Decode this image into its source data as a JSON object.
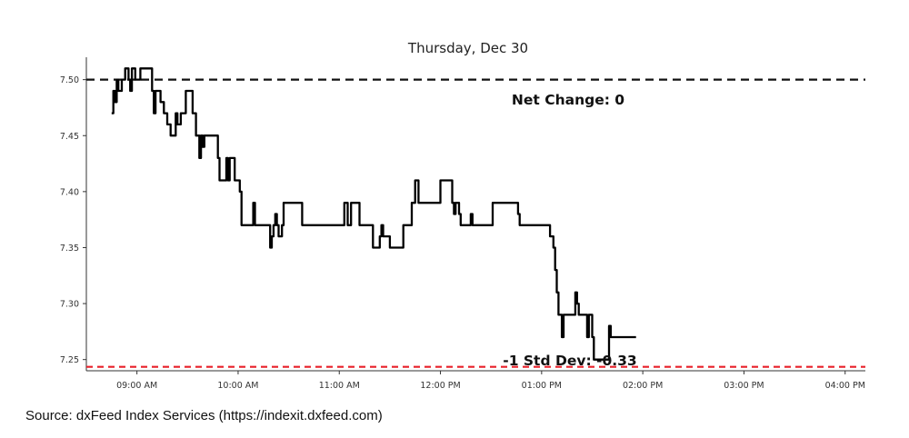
{
  "chart_data": {
    "type": "line",
    "title": "Thursday, Dec 30",
    "xlabel": "",
    "ylabel": "",
    "x_tick_labels": [
      "09:00 AM",
      "10:00 AM",
      "11:00 AM",
      "12:00 PM",
      "01:00 PM",
      "02:00 PM",
      "03:00 PM",
      "04:00 PM"
    ],
    "x_tick_minutes": [
      540,
      600,
      660,
      720,
      780,
      840,
      900,
      960
    ],
    "xlim_minutes": [
      510,
      972
    ],
    "y_tick_labels": [
      "7.25",
      "7.30",
      "7.35",
      "7.40",
      "7.45",
      "7.50"
    ],
    "y_ticks": [
      7.25,
      7.3,
      7.35,
      7.4,
      7.45,
      7.5
    ],
    "ylim": [
      7.24,
      7.52
    ],
    "grid": false,
    "series": [
      {
        "points": [
          [
            525,
            7.47
          ],
          [
            526,
            7.49
          ],
          [
            527,
            7.48
          ],
          [
            528,
            7.5
          ],
          [
            529,
            7.49
          ],
          [
            531,
            7.5
          ],
          [
            533,
            7.51
          ],
          [
            535,
            7.5
          ],
          [
            536,
            7.49
          ],
          [
            537,
            7.51
          ],
          [
            539,
            7.5
          ],
          [
            542,
            7.51
          ],
          [
            545,
            7.51
          ],
          [
            548,
            7.51
          ],
          [
            549,
            7.49
          ],
          [
            550,
            7.47
          ],
          [
            551,
            7.49
          ],
          [
            554,
            7.48
          ],
          [
            556,
            7.47
          ],
          [
            558,
            7.46
          ],
          [
            560,
            7.45
          ],
          [
            562,
            7.45
          ],
          [
            563,
            7.47
          ],
          [
            564,
            7.46
          ],
          [
            566,
            7.47
          ],
          [
            568,
            7.47
          ],
          [
            569,
            7.49
          ],
          [
            572,
            7.49
          ],
          [
            573,
            7.47
          ],
          [
            575,
            7.45
          ],
          [
            576,
            7.45
          ],
          [
            577,
            7.43
          ],
          [
            578,
            7.45
          ],
          [
            579,
            7.44
          ],
          [
            580,
            7.45
          ],
          [
            585,
            7.45
          ],
          [
            587,
            7.45
          ],
          [
            588,
            7.43
          ],
          [
            589,
            7.41
          ],
          [
            592,
            7.41
          ],
          [
            593,
            7.43
          ],
          [
            594,
            7.41
          ],
          [
            595,
            7.43
          ],
          [
            596,
            7.43
          ],
          [
            597,
            7.43
          ],
          [
            598,
            7.41
          ],
          [
            600,
            7.41
          ],
          [
            601,
            7.4
          ],
          [
            602,
            7.37
          ],
          [
            608,
            7.37
          ],
          [
            609,
            7.39
          ],
          [
            610,
            7.37
          ],
          [
            618,
            7.37
          ],
          [
            619,
            7.35
          ],
          [
            620,
            7.36
          ],
          [
            621,
            7.37
          ],
          [
            622,
            7.38
          ],
          [
            623,
            7.37
          ],
          [
            624,
            7.36
          ],
          [
            626,
            7.37
          ],
          [
            627,
            7.39
          ],
          [
            637,
            7.39
          ],
          [
            638,
            7.37
          ],
          [
            662,
            7.37
          ],
          [
            663,
            7.39
          ],
          [
            665,
            7.37
          ],
          [
            667,
            7.39
          ],
          [
            671,
            7.39
          ],
          [
            672,
            7.37
          ],
          [
            679,
            7.37
          ],
          [
            680,
            7.35
          ],
          [
            683,
            7.35
          ],
          [
            684,
            7.36
          ],
          [
            685,
            7.37
          ],
          [
            686,
            7.36
          ],
          [
            689,
            7.36
          ],
          [
            690,
            7.35
          ],
          [
            697,
            7.35
          ],
          [
            698,
            7.37
          ],
          [
            702,
            7.37
          ],
          [
            703,
            7.39
          ],
          [
            705,
            7.41
          ],
          [
            706,
            7.41
          ],
          [
            707,
            7.39
          ],
          [
            719,
            7.39
          ],
          [
            720,
            7.41
          ],
          [
            726,
            7.41
          ],
          [
            727,
            7.39
          ],
          [
            728,
            7.38
          ],
          [
            729,
            7.39
          ],
          [
            730,
            7.39
          ],
          [
            731,
            7.38
          ],
          [
            732,
            7.37
          ],
          [
            737,
            7.37
          ],
          [
            738,
            7.38
          ],
          [
            739,
            7.37
          ],
          [
            750,
            7.37
          ],
          [
            751,
            7.39
          ],
          [
            765,
            7.39
          ],
          [
            766,
            7.38
          ],
          [
            767,
            7.37
          ],
          [
            784,
            7.37
          ],
          [
            785,
            7.36
          ],
          [
            786,
            7.36
          ],
          [
            787,
            7.35
          ],
          [
            788,
            7.33
          ],
          [
            789,
            7.31
          ],
          [
            790,
            7.29
          ],
          [
            792,
            7.27
          ],
          [
            793,
            7.29
          ],
          [
            799,
            7.29
          ],
          [
            800,
            7.31
          ],
          [
            801,
            7.3
          ],
          [
            802,
            7.29
          ],
          [
            806,
            7.29
          ],
          [
            807,
            7.27
          ],
          [
            808,
            7.29
          ],
          [
            809,
            7.29
          ],
          [
            810,
            7.27
          ],
          [
            811,
            7.25
          ],
          [
            819,
            7.25
          ],
          [
            820,
            7.28
          ],
          [
            821,
            7.27
          ],
          [
            836,
            7.27
          ]
        ]
      }
    ],
    "reference_lines": [
      {
        "value": 7.5,
        "color": "#111111",
        "style": "dashed",
        "label": "Net Change: 0"
      },
      {
        "value": 7.2435,
        "color": "#e8202a",
        "style": "dashed",
        "label": "-1 Std Dev: -0.33"
      }
    ]
  },
  "source": "Source: dxFeed Index Services (https://indexit.dxfeed.com)"
}
